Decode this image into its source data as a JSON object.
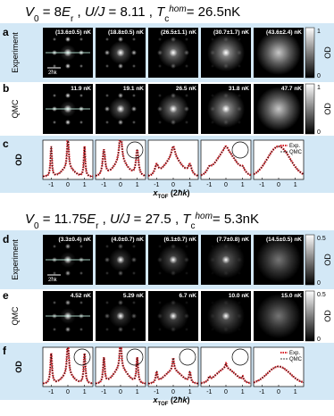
{
  "groups": [
    {
      "title": [
        "V",
        "0",
        " = 8",
        "E",
        "r",
        " ,  ",
        "U/J",
        " = 8.11 ,  ",
        "T",
        "c",
        "hom",
        "= 26.5nK"
      ],
      "rows": [
        {
          "label": "a",
          "name": "Experiment",
          "temps": [
            "(13.6±0.5) nK",
            "(18.8±0.5) nK",
            "(26.5±1.1) nK",
            "(30.7±1.7) nK",
            "(43.6±2.4) nK"
          ]
        },
        {
          "label": "b",
          "name": "QMC",
          "temps": [
            "11.9 nK",
            "19.1 nK",
            "26.5 nK",
            "31.8 nK",
            "47.7 nK"
          ]
        },
        {
          "label": "c",
          "y_label": "OD",
          "x_label": [
            "x",
            "TOF",
            " (2",
            "ħk",
            ")"
          ],
          "xticks": [
            "-1",
            "0",
            "1"
          ],
          "legend": [
            "Exp.",
            "QMC"
          ]
        }
      ],
      "scale_bar": "2ħk",
      "colorbar": {
        "label": "OD",
        "ticks": [
          "1",
          "0"
        ]
      }
    },
    {
      "title": [
        "V",
        "0",
        " = 11.75",
        "E",
        "r",
        " ,  ",
        "U/J",
        " = 27.5 ,  ",
        "T",
        "c",
        "hom",
        "= 5.3nK"
      ],
      "rows": [
        {
          "label": "d",
          "name": "Experiment",
          "temps": [
            "(3.3±0.4) nK",
            "(4.0±0.7) nK",
            "(6.1±0.7) nK",
            "(7.7±0.8) nK",
            "(14.5±0.5) nK"
          ]
        },
        {
          "label": "e",
          "name": "QMC",
          "temps": [
            "4.52 nK",
            "5.29 nK",
            "6.7 nK",
            "10.0 nK",
            "15.0 nK"
          ]
        },
        {
          "label": "f",
          "y_label": "OD",
          "x_label": [
            "x",
            "TOF",
            " (2",
            "ħk",
            ")"
          ],
          "xticks": [
            "-1",
            "0",
            "1"
          ],
          "legend": [
            "Exp.",
            "QMC"
          ]
        }
      ],
      "scale_bar": "2ħk",
      "colorbar": {
        "label": "OD",
        "ticks": [
          "0.5",
          "0"
        ]
      }
    }
  ]
}
